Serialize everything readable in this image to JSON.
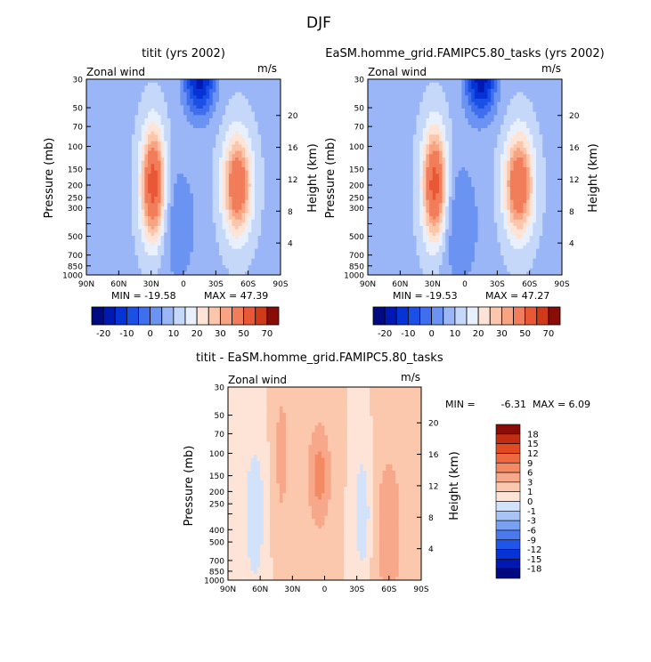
{
  "figure": {
    "title": "DJF"
  },
  "palettes": {
    "main": [
      "#000a80",
      "#0019b3",
      "#0533d6",
      "#1a50e6",
      "#3f6fee",
      "#6b93f2",
      "#9ab6f6",
      "#c6d8fa",
      "#e8f0fd",
      "#fde4d6",
      "#fbc6ab",
      "#f7a483",
      "#f17d5a",
      "#e85836",
      "#cf3a1a",
      "#8a0c07"
    ],
    "diff": [
      "#000a80",
      "#0019b3",
      "#0533d6",
      "#1f55e8",
      "#4a79ee",
      "#7aa0f2",
      "#a8c3f6",
      "#d3e2fb",
      "#fde4d6",
      "#fbc8ad",
      "#f8a88a",
      "#f38a63",
      "#ed6a40",
      "#e34a22",
      "#c32e12",
      "#8a0c07"
    ]
  },
  "chart_data": [
    {
      "type": "contour",
      "title": "titit (yrs 2002)",
      "subtitle_left": "Zonal wind",
      "subtitle_right": "m/s",
      "xlabel": "",
      "ylabel": "Pressure (mb)",
      "ylabel_right": "Height (km)",
      "x_ticks": [
        "90N",
        "60N",
        "30N",
        "0",
        "30S",
        "60S",
        "90S"
      ],
      "x_range": [
        90,
        -90
      ],
      "y_ticks": [
        30,
        50,
        70,
        100,
        150,
        200,
        250,
        300,
        400,
        500,
        700,
        850,
        1000
      ],
      "y_ticks_display": [
        30,
        50,
        70,
        100,
        150,
        200,
        250,
        300,
        500,
        700,
        850,
        1000
      ],
      "y_range": [
        1000,
        30
      ],
      "y_right_ticks": [
        4,
        8,
        12,
        16,
        20
      ],
      "min_label": "MIN = -19.58",
      "max_label": "MAX = 47.39",
      "min": -19.58,
      "max": 47.39,
      "field": {
        "kind": "main",
        "features": [
          {
            "lat": 28,
            "p": 200,
            "amp": 42,
            "lat_w": 11,
            "logp_w": 0.42
          },
          {
            "lat": -50,
            "p": 200,
            "amp": 35,
            "lat_w": 13,
            "logp_w": 0.38
          },
          {
            "lat": -15,
            "p": 30,
            "amp": -26,
            "lat_w": 14,
            "logp_w": 0.28
          },
          {
            "lat": 5,
            "p": 400,
            "amp": -8,
            "lat_w": 18,
            "logp_w": 0.5
          }
        ],
        "base": 4
      },
      "colorbar": {
        "labels": [
          "-20",
          "-10",
          "0",
          "10",
          "20",
          "30",
          "50",
          "70"
        ],
        "levels": [
          -25,
          -20,
          -15,
          -10,
          -5,
          0,
          5,
          10,
          15,
          20,
          25,
          30,
          40,
          50,
          60,
          70
        ]
      }
    },
    {
      "type": "contour",
      "title": "EaSM.homme_grid.FAMIPC5.80_tasks (yrs 2002)",
      "subtitle_left": "Zonal wind",
      "subtitle_right": "m/s",
      "xlabel": "",
      "ylabel": "Pressure (mb)",
      "ylabel_right": "Height (km)",
      "x_ticks": [
        "90N",
        "60N",
        "30N",
        "0",
        "30S",
        "60S",
        "90S"
      ],
      "x_range": [
        90,
        -90
      ],
      "y_ticks": [
        30,
        50,
        70,
        100,
        150,
        200,
        250,
        300,
        400,
        500,
        700,
        850,
        1000
      ],
      "y_ticks_display": [
        30,
        50,
        70,
        100,
        150,
        200,
        250,
        300,
        500,
        700,
        850,
        1000
      ],
      "y_range": [
        1000,
        30
      ],
      "y_right_ticks": [
        4,
        8,
        12,
        16,
        20
      ],
      "min_label": "MIN = -19.53",
      "max_label": "MAX = 47.27",
      "min": -19.53,
      "max": 47.27,
      "field": {
        "kind": "main",
        "features": [
          {
            "lat": 28,
            "p": 200,
            "amp": 41,
            "lat_w": 11,
            "logp_w": 0.42
          },
          {
            "lat": -50,
            "p": 200,
            "amp": 36,
            "lat_w": 13,
            "logp_w": 0.38
          },
          {
            "lat": -15,
            "p": 30,
            "amp": -27,
            "lat_w": 14,
            "logp_w": 0.28
          },
          {
            "lat": 5,
            "p": 400,
            "amp": -9,
            "lat_w": 18,
            "logp_w": 0.5
          }
        ],
        "base": 4
      },
      "colorbar": {
        "labels": [
          "-20",
          "-10",
          "0",
          "10",
          "20",
          "30",
          "50",
          "70"
        ],
        "levels": [
          -25,
          -20,
          -15,
          -10,
          -5,
          0,
          5,
          10,
          15,
          20,
          25,
          30,
          40,
          50,
          60,
          70
        ]
      }
    },
    {
      "type": "contour",
      "title": "titit - EaSM.homme_grid.FAMIPC5.80_tasks",
      "subtitle_left": "Zonal wind",
      "subtitle_right": "m/s",
      "xlabel": "",
      "ylabel": "Pressure (mb)",
      "ylabel_right": "Height (km)",
      "x_ticks": [
        "90N",
        "60N",
        "30N",
        "0",
        "30S",
        "60S",
        "90S"
      ],
      "x_range": [
        90,
        -90
      ],
      "y_ticks": [
        30,
        50,
        70,
        100,
        150,
        200,
        250,
        300,
        400,
        500,
        700,
        850,
        1000
      ],
      "y_ticks_display": [
        30,
        50,
        70,
        100,
        150,
        200,
        250,
        400,
        500,
        700,
        850,
        1000
      ],
      "y_range": [
        1000,
        30
      ],
      "y_right_ticks": [
        4,
        8,
        12,
        16,
        20
      ],
      "min_label": "MIN =",
      "min_value": "-6.31",
      "max_label": "MAX =",
      "max_value": "6.09",
      "min": -6.31,
      "max": 6.09,
      "field": {
        "kind": "diff",
        "features": [
          {
            "lat": 5,
            "p": 150,
            "amp": 4,
            "lat_w": 9,
            "logp_w": 0.35
          },
          {
            "lat": -60,
            "p": 400,
            "amp": 3,
            "lat_w": 10,
            "logp_w": 0.5
          },
          {
            "lat": 65,
            "p": 300,
            "amp": -2.5,
            "lat_w": 8,
            "logp_w": 0.5
          },
          {
            "lat": -35,
            "p": 300,
            "amp": -2.5,
            "lat_w": 6,
            "logp_w": 0.4
          },
          {
            "lat": 40,
            "p": 100,
            "amp": 1.5,
            "lat_w": 7,
            "logp_w": 0.6
          }
        ],
        "base": 0
      },
      "colorbar": {
        "labels": [
          "18",
          "15",
          "12",
          "9",
          "6",
          "3",
          "1",
          "0",
          "-1",
          "-3",
          "-6",
          "-9",
          "-12",
          "-15",
          "-18"
        ],
        "levels": [
          -21,
          -18,
          -15,
          -12,
          -9,
          -6,
          -3,
          -1,
          0,
          1,
          3,
          6,
          9,
          12,
          15,
          18,
          21
        ]
      }
    }
  ]
}
